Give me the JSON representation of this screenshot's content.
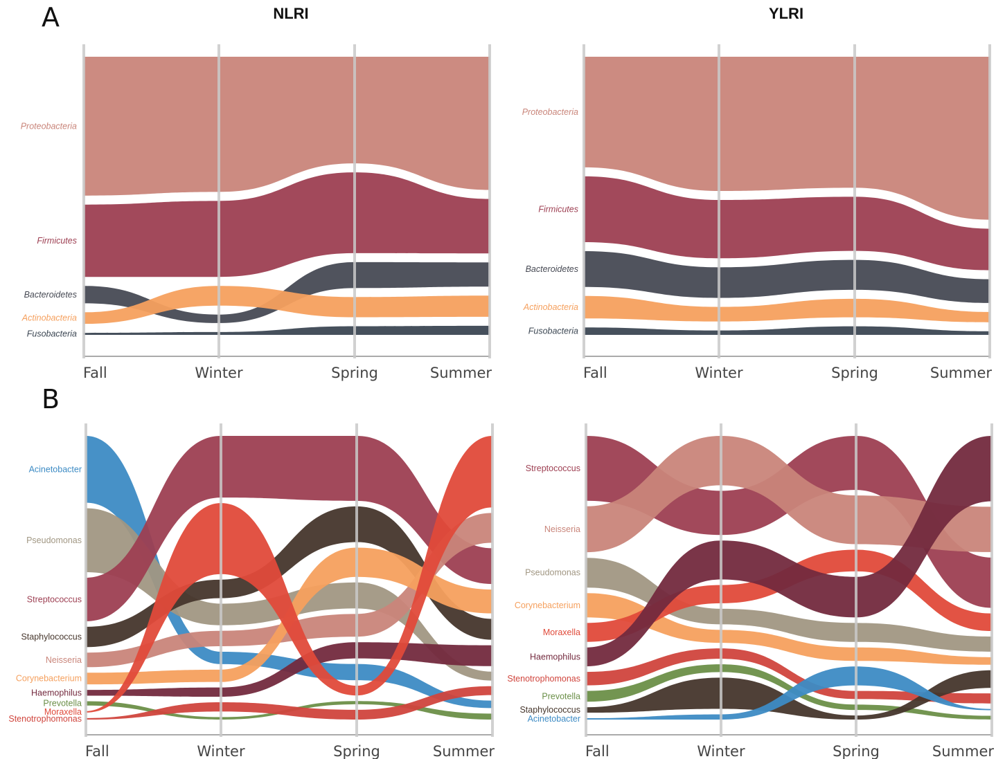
{
  "figure": {
    "seasons": [
      "Fall",
      "Winter",
      "Spring",
      "Summer"
    ],
    "panels": [
      "A",
      "B"
    ]
  },
  "chart_data": [
    {
      "type": "area",
      "panel": "A",
      "title": "NLRI",
      "italic": true,
      "categories": [
        "Fall",
        "Winter",
        "Spring",
        "Summer"
      ],
      "series": [
        {
          "name": "Proteobacteria",
          "color": "#c9857a",
          "rank": [
            1,
            1,
            1,
            1
          ],
          "values": [
            0.48,
            0.48,
            0.37,
            0.44
          ]
        },
        {
          "name": "Firmicutes",
          "color": "#9d3f52",
          "rank": [
            2,
            2,
            2,
            2
          ],
          "values": [
            0.25,
            0.27,
            0.28,
            0.18
          ]
        },
        {
          "name": "Bacteroidetes",
          "color": "#474a54",
          "rank": [
            3,
            4,
            3,
            3
          ],
          "values": [
            0.06,
            0.03,
            0.09,
            0.08
          ]
        },
        {
          "name": "Actinobacteria",
          "color": "#f5a05e",
          "rank": [
            4,
            3,
            4,
            4
          ],
          "values": [
            0.04,
            0.07,
            0.07,
            0.07
          ]
        },
        {
          "name": "Fusobacteria",
          "color": "#3c4753",
          "rank": [
            5,
            5,
            5,
            5
          ],
          "values": [
            0.007,
            0.01,
            0.03,
            0.03
          ]
        }
      ]
    },
    {
      "type": "area",
      "panel": "A",
      "title": "YLRI",
      "italic": true,
      "categories": [
        "Fall",
        "Winter",
        "Spring",
        "Summer"
      ],
      "series": [
        {
          "name": "Proteobacteria",
          "color": "#c9857a",
          "rank": [
            1,
            1,
            1,
            1
          ],
          "values": [
            0.37,
            0.46,
            0.46,
            0.55
          ]
        },
        {
          "name": "Firmicutes",
          "color": "#9d3f52",
          "rank": [
            2,
            2,
            2,
            2
          ],
          "values": [
            0.22,
            0.2,
            0.19,
            0.14
          ]
        },
        {
          "name": "Bacteroidetes",
          "color": "#474a54",
          "rank": [
            3,
            3,
            3,
            3
          ],
          "values": [
            0.12,
            0.105,
            0.105,
            0.08
          ]
        },
        {
          "name": "Actinobacteria",
          "color": "#f5a05e",
          "rank": [
            4,
            4,
            4,
            4
          ],
          "values": [
            0.075,
            0.05,
            0.065,
            0.035
          ]
        },
        {
          "name": "Fusobacteria",
          "color": "#3c4753",
          "rank": [
            5,
            5,
            5,
            5
          ],
          "values": [
            0.025,
            0.015,
            0.03,
            0.012
          ]
        }
      ]
    },
    {
      "type": "area",
      "panel": "B",
      "title": "",
      "italic": false,
      "categories": [
        "Fall",
        "Winter",
        "Spring",
        "Summer"
      ],
      "series": [
        {
          "name": "Acinetobacter",
          "color": "#3d8bc4",
          "rank": [
            1,
            6,
            7,
            9
          ],
          "values": [
            0.23,
            0.04,
            0.05,
            0.025
          ]
        },
        {
          "name": "Pseudomonas",
          "color": "#a19783",
          "rank": [
            2,
            4,
            4,
            7
          ],
          "values": [
            0.22,
            0.07,
            0.08,
            0.03
          ]
        },
        {
          "name": "Streptococcus",
          "color": "#9d3f52",
          "rank": [
            3,
            1,
            1,
            3
          ],
          "values": [
            0.15,
            0.2,
            0.2,
            0.12
          ]
        },
        {
          "name": "Staphylococcus",
          "color": "#46362c",
          "rank": [
            4,
            3,
            2,
            5
          ],
          "values": [
            0.07,
            0.06,
            0.11,
            0.07
          ]
        },
        {
          "name": "Neisseria",
          "color": "#c9857a",
          "rank": [
            5,
            5,
            5,
            2
          ],
          "values": [
            0.05,
            0.05,
            0.07,
            0.1
          ]
        },
        {
          "name": "Corynebacterium",
          "color": "#f5a05e",
          "rank": [
            6,
            7,
            3,
            4
          ],
          "values": [
            0.04,
            0.04,
            0.09,
            0.08
          ]
        },
        {
          "name": "Haemophilus",
          "color": "#732a3e",
          "rank": [
            7,
            8,
            6,
            6
          ],
          "values": [
            0.02,
            0.03,
            0.05,
            0.07
          ]
        },
        {
          "name": "Prevotella",
          "color": "#6b8f48",
          "rank": [
            8,
            10,
            9,
            10
          ],
          "values": [
            0.015,
            0.008,
            0.01,
            0.02
          ]
        },
        {
          "name": "Moraxella",
          "color": "#e04a3a",
          "rank": [
            9,
            2,
            8,
            1
          ],
          "values": [
            0.005,
            0.23,
            0.03,
            0.24
          ]
        },
        {
          "name": "Stenotrophomonas",
          "color": "#d0453d",
          "rank": [
            10,
            9,
            10,
            8
          ],
          "values": [
            0.005,
            0.03,
            0.03,
            0.03
          ]
        }
      ]
    },
    {
      "type": "area",
      "panel": "B",
      "title": "",
      "italic": false,
      "categories": [
        "Fall",
        "Winter",
        "Spring",
        "Summer"
      ],
      "series": [
        {
          "name": "Streptococcus",
          "color": "#9d3f52",
          "rank": [
            1,
            2,
            1,
            3
          ],
          "values": [
            0.24,
            0.17,
            0.2,
            0.2
          ]
        },
        {
          "name": "Neisseria",
          "color": "#c9857a",
          "rank": [
            2,
            1,
            2,
            2
          ],
          "values": [
            0.17,
            0.19,
            0.18,
            0.18
          ]
        },
        {
          "name": "Pseudomonas",
          "color": "#a19783",
          "rank": [
            3,
            5,
            4,
            5
          ],
          "values": [
            0.11,
            0.06,
            0.07,
            0.06
          ]
        },
        {
          "name": "Corynebacterium",
          "color": "#f5a05e",
          "rank": [
            4,
            6,
            5,
            6
          ],
          "values": [
            0.09,
            0.05,
            0.05,
            0.03
          ]
        },
        {
          "name": "Moraxella",
          "color": "#e04a3a",
          "rank": [
            5,
            4,
            3,
            4
          ],
          "values": [
            0.07,
            0.07,
            0.08,
            0.07
          ]
        },
        {
          "name": "Haemophilus",
          "color": "#732a3e",
          "rank": [
            6,
            3,
            3,
            1
          ],
          "values": [
            0.07,
            0.15,
            0.15,
            0.26
          ]
        },
        {
          "name": "Stenotrophomonas",
          "color": "#d0453d",
          "rank": [
            7,
            7,
            8,
            8
          ],
          "values": [
            0.05,
            0.04,
            0.03,
            0.04
          ]
        },
        {
          "name": "Prevotella",
          "color": "#6b8f48",
          "rank": [
            8,
            8,
            9,
            10
          ],
          "values": [
            0.04,
            0.03,
            0.02,
            0.015
          ]
        },
        {
          "name": "Staphylococcus",
          "color": "#46362c",
          "rank": [
            9,
            9,
            10,
            7
          ],
          "values": [
            0.02,
            0.12,
            0.015,
            0.07
          ]
        },
        {
          "name": "Acinetobacter",
          "color": "#3d8bc4",
          "rank": [
            10,
            10,
            7,
            9
          ],
          "values": [
            0.005,
            0.02,
            0.07,
            0.005
          ]
        }
      ]
    }
  ]
}
